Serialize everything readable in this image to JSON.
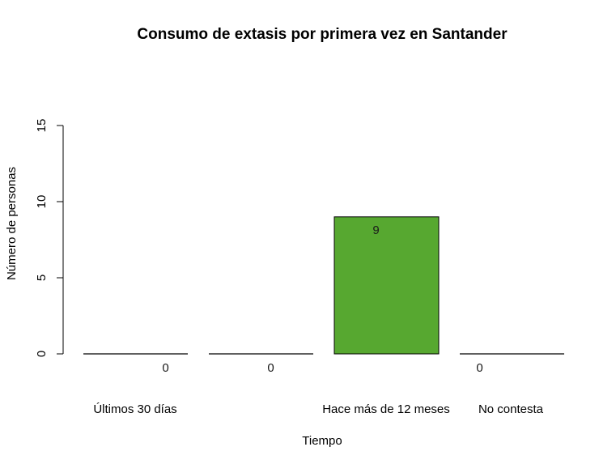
{
  "chart_data": {
    "type": "bar",
    "title": "Consumo de extasis por primera vez en Santander",
    "xlabel": "Tiempo",
    "ylabel": "Número de personas",
    "categories": [
      "Últimos 30 días",
      "",
      "Hace más de 12 meses",
      "No contesta"
    ],
    "values": [
      0,
      0,
      9,
      0
    ],
    "data_labels": [
      "0",
      "0",
      "9",
      "0"
    ],
    "ylim": [
      0,
      15
    ],
    "yticks": [
      0,
      5,
      10,
      15
    ],
    "bar_color": "#57a830",
    "grid": false
  }
}
